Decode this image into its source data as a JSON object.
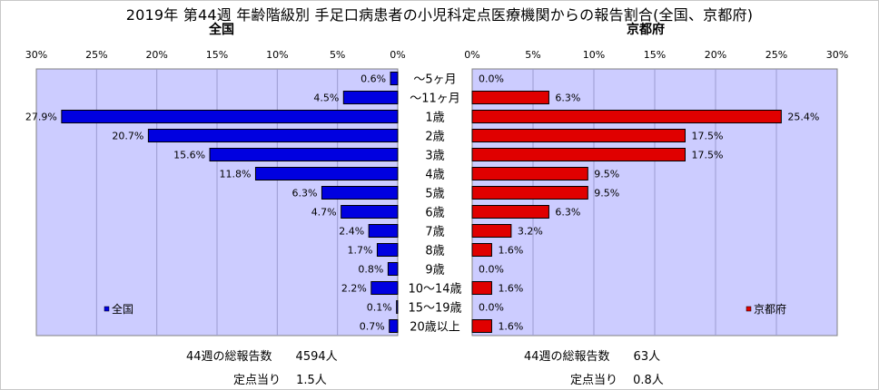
{
  "title": "2019年 第44週 年齢階級別 手足口病患者の小児科定点医療機関からの報告割合(全国、京都府)",
  "colors": {
    "national": "#0000e0",
    "kyoto": "#e00000",
    "plot_bg": "#ccccff"
  },
  "chart_data": [
    {
      "type": "bar",
      "orientation": "horizontal",
      "subtitle": "全国",
      "legend": "全国",
      "legend_position": "bottom-left",
      "direction": "right-to-left",
      "xlim": [
        0,
        30
      ],
      "ticks": [
        "30%",
        "25%",
        "20%",
        "15%",
        "10%",
        "5%",
        "0%"
      ],
      "categories": [
        "～5ヶ月",
        "～11ヶ月",
        "1歳",
        "2歳",
        "3歳",
        "4歳",
        "5歳",
        "6歳",
        "7歳",
        "8歳",
        "9歳",
        "10～14歳",
        "15～19歳",
        "20歳以上"
      ],
      "values": [
        0.6,
        4.5,
        27.9,
        20.7,
        15.6,
        11.8,
        6.3,
        4.7,
        2.4,
        1.7,
        0.8,
        2.2,
        0.1,
        0.7
      ],
      "labels": [
        "0.6%",
        "4.5%",
        "27.9%",
        "20.7%",
        "15.6%",
        "11.8%",
        "6.3%",
        "4.7%",
        "2.4%",
        "1.7%",
        "0.8%",
        "2.2%",
        "0.1%",
        "0.7%"
      ],
      "grid": true
    },
    {
      "type": "bar",
      "orientation": "horizontal",
      "subtitle": "京都府",
      "legend": "京都府",
      "legend_position": "bottom-right",
      "direction": "left-to-right",
      "xlim": [
        0,
        30
      ],
      "ticks": [
        "0%",
        "5%",
        "10%",
        "15%",
        "20%",
        "25%",
        "30%"
      ],
      "categories": [
        "～5ヶ月",
        "～11ヶ月",
        "1歳",
        "2歳",
        "3歳",
        "4歳",
        "5歳",
        "6歳",
        "7歳",
        "8歳",
        "9歳",
        "10～14歳",
        "15～19歳",
        "20歳以上"
      ],
      "values": [
        0.0,
        6.3,
        25.4,
        17.5,
        17.5,
        9.5,
        9.5,
        6.3,
        3.2,
        1.6,
        0.0,
        1.6,
        0.0,
        1.6
      ],
      "labels": [
        "0.0%",
        "6.3%",
        "25.4%",
        "17.5%",
        "17.5%",
        "9.5%",
        "9.5%",
        "6.3%",
        "3.2%",
        "1.6%",
        "0.0%",
        "1.6%",
        "0.0%",
        "1.6%"
      ],
      "grid": true
    }
  ],
  "footer": {
    "national_total": "44週の総報告数　　4594人",
    "national_per": "定点当り　 1.5人",
    "kyoto_total": "44週の総報告数　　63人",
    "kyoto_per": "定点当り　 0.8人"
  }
}
